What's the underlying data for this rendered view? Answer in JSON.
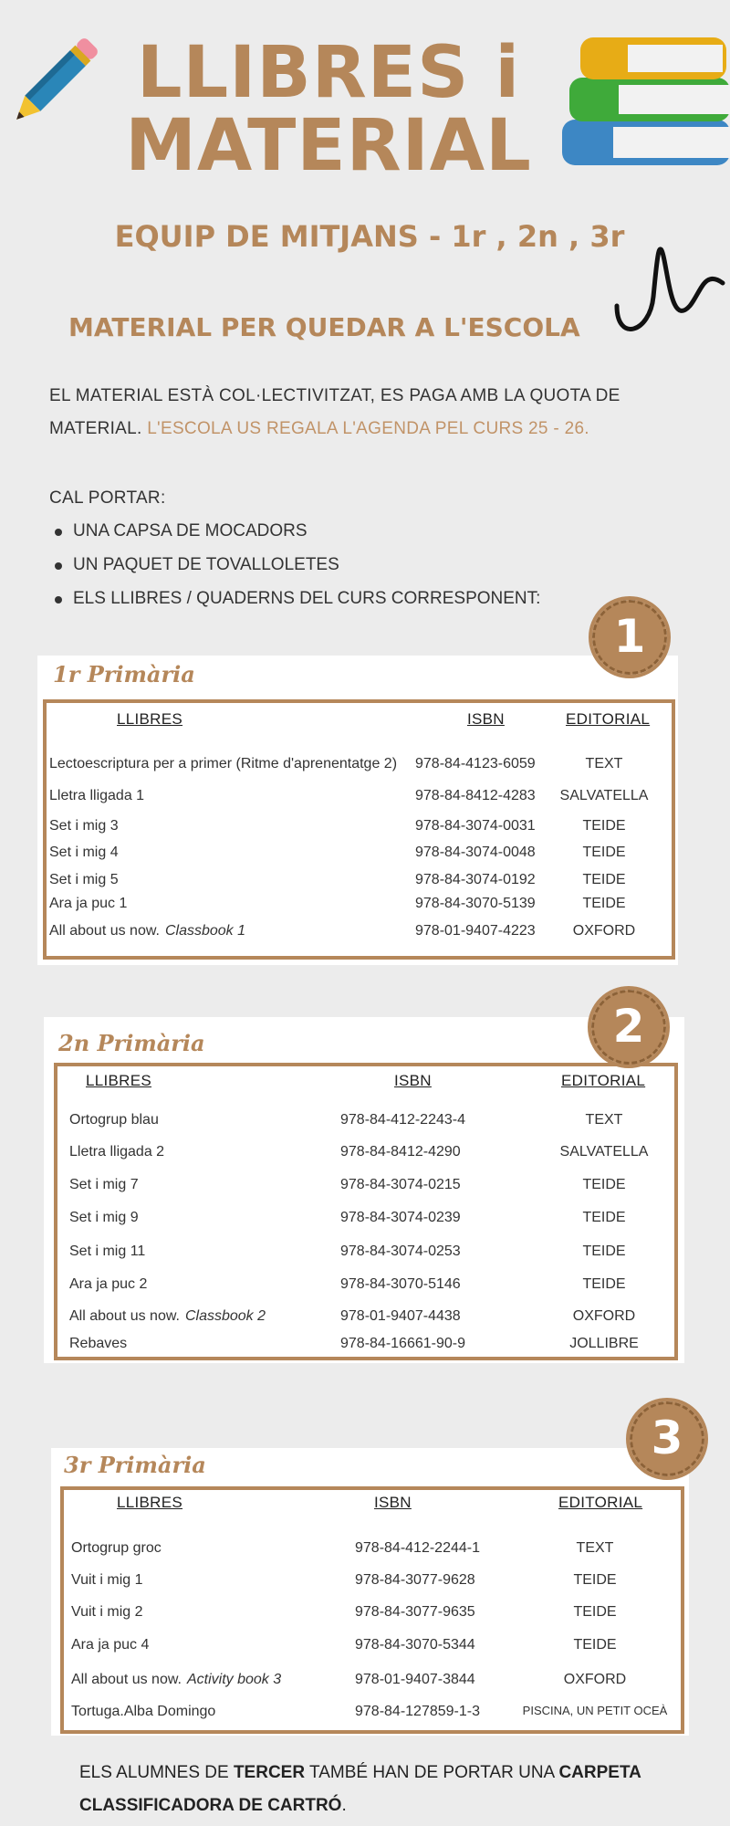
{
  "header": {
    "title_line1": "LLIBRES i",
    "title_line2": "MATERIAL",
    "subtitle": "EQUIP DE MITJANS - 1r , 2n , 3r",
    "section": "MATERIAL PER QUEDAR A L'ESCOLA"
  },
  "intro": {
    "line1": "El material està col·lectivitzat, es paga amb la quota de",
    "line2_a": "material.",
    "line2_b": "L'escola us regala l'agenda pel curs 25 - 26.",
    "cal": "Cal portar:",
    "bullets": [
      "Una capsa de mocadors",
      "Un paquet de tovalloletes",
      "Els llibres / quaderns del curs corresponent:"
    ]
  },
  "colors": {
    "accent": "#b5875a",
    "background": "#ececec"
  },
  "tables": [
    {
      "badge": "1",
      "title": "1r Primària",
      "headers": [
        "LLIBRES",
        "ISBN",
        "EDITORIAL"
      ],
      "rows": [
        [
          "Lectoescriptura per a primer (Ritme d'aprenentatge 2)",
          "",
          "978-84-4123-6059",
          "TEXT"
        ],
        [
          "Lletra lligada 1",
          "",
          "978-84-8412-4283",
          "SALVATELLA"
        ],
        [
          "Set i mig 3",
          "",
          "978-84-3074-0031",
          "TEIDE"
        ],
        [
          "Set i mig 4",
          "",
          "978-84-3074-0048",
          "TEIDE"
        ],
        [
          "Set i mig 5",
          "",
          "978-84-3074-0192",
          "TEIDE"
        ],
        [
          "Ara ja puc 1",
          "",
          "978-84-3070-5139",
          "TEIDE"
        ],
        [
          "All about us now.",
          "Classbook 1",
          "978-01-9407-4223",
          "OXFORD"
        ]
      ]
    },
    {
      "badge": "2",
      "title": "2n Primària",
      "headers": [
        "LLIBRES",
        "ISBN",
        "EDITORIAL"
      ],
      "rows": [
        [
          "Ortogrup blau",
          "",
          "978-84-412-2243-4",
          "TEXT"
        ],
        [
          "Lletra lligada 2",
          "",
          "978-84-8412-4290",
          "SALVATELLA"
        ],
        [
          "Set i mig 7",
          "",
          "978-84-3074-0215",
          "TEIDE"
        ],
        [
          "Set i mig 9",
          "",
          "978-84-3074-0239",
          "TEIDE"
        ],
        [
          "Set i mig 11",
          "",
          "978-84-3074-0253",
          "TEIDE"
        ],
        [
          "Ara ja puc 2",
          "",
          "978-84-3070-5146",
          "TEIDE"
        ],
        [
          "All about us now.",
          "Classbook 2",
          "978-01-9407-4438",
          "OXFORD"
        ],
        [
          "Rebaves",
          "",
          "978-84-16661-90-9",
          "JOLLIBRE"
        ]
      ]
    },
    {
      "badge": "3",
      "title": "3r Primària",
      "headers": [
        "LLIBRES",
        "ISBN",
        "EDITORIAL"
      ],
      "rows": [
        [
          "Ortogrup groc",
          "",
          "978-84-412-2244-1",
          "TEXT"
        ],
        [
          "Vuit i mig 1",
          "",
          "978-84-3077-9628",
          "TEIDE"
        ],
        [
          "Vuit i mig 2",
          "",
          "978-84-3077-9635",
          "TEIDE"
        ],
        [
          "Ara ja puc 4",
          "",
          "978-84-3070-5344",
          "TEIDE"
        ],
        [
          "All about us now.",
          "Activity book 3",
          "978-01-9407-3844",
          "OXFORD"
        ],
        [
          "Tortuga.Alba Domingo",
          "",
          "978-84-127859-1-3",
          "PISCINA, UN PETIT OCEÀ"
        ]
      ]
    }
  ],
  "footer": {
    "a": "Els alumnes de",
    "b": "tercer",
    "c": "també han de portar una",
    "d": "carpeta classificadora de cartró",
    "e": "."
  }
}
